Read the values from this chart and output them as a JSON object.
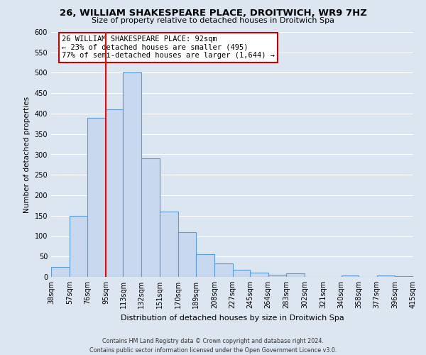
{
  "title": "26, WILLIAM SHAKESPEARE PLACE, DROITWICH, WR9 7HZ",
  "subtitle": "Size of property relative to detached houses in Droitwich Spa",
  "xlabel": "Distribution of detached houses by size in Droitwich Spa",
  "ylabel": "Number of detached properties",
  "bar_edges": [
    38,
    57,
    76,
    95,
    113,
    132,
    151,
    170,
    189,
    208,
    227,
    245,
    264,
    283,
    302,
    321,
    340,
    358,
    377,
    396,
    415
  ],
  "bar_heights": [
    25,
    150,
    390,
    410,
    500,
    290,
    160,
    110,
    55,
    33,
    18,
    10,
    5,
    9,
    0,
    0,
    3,
    0,
    3,
    2
  ],
  "bar_color": "#c8d9ef",
  "bar_edge_color": "#5b9bd5",
  "red_line_x": 95,
  "annotation_title": "26 WILLIAM SHAKESPEARE PLACE: 92sqm",
  "annotation_line1": "← 23% of detached houses are smaller (495)",
  "annotation_line2": "77% of semi-detached houses are larger (1,644) →",
  "annotation_box_color": "#ffffff",
  "annotation_box_edge": "#cc0000",
  "ylim": [
    0,
    600
  ],
  "xlim": [
    38,
    415
  ],
  "yticks": [
    0,
    50,
    100,
    150,
    200,
    250,
    300,
    350,
    400,
    450,
    500,
    550,
    600
  ],
  "tick_labels": [
    "38sqm",
    "57sqm",
    "76sqm",
    "95sqm",
    "113sqm",
    "132sqm",
    "151sqm",
    "170sqm",
    "189sqm",
    "208sqm",
    "227sqm",
    "245sqm",
    "264sqm",
    "283sqm",
    "302sqm",
    "321sqm",
    "340sqm",
    "358sqm",
    "377sqm",
    "396sqm",
    "415sqm"
  ],
  "footer1": "Contains HM Land Registry data © Crown copyright and database right 2024.",
  "footer2": "Contains public sector information licensed under the Open Government Licence v3.0.",
  "grid_color": "#ffffff",
  "bg_color": "#dce6f1"
}
